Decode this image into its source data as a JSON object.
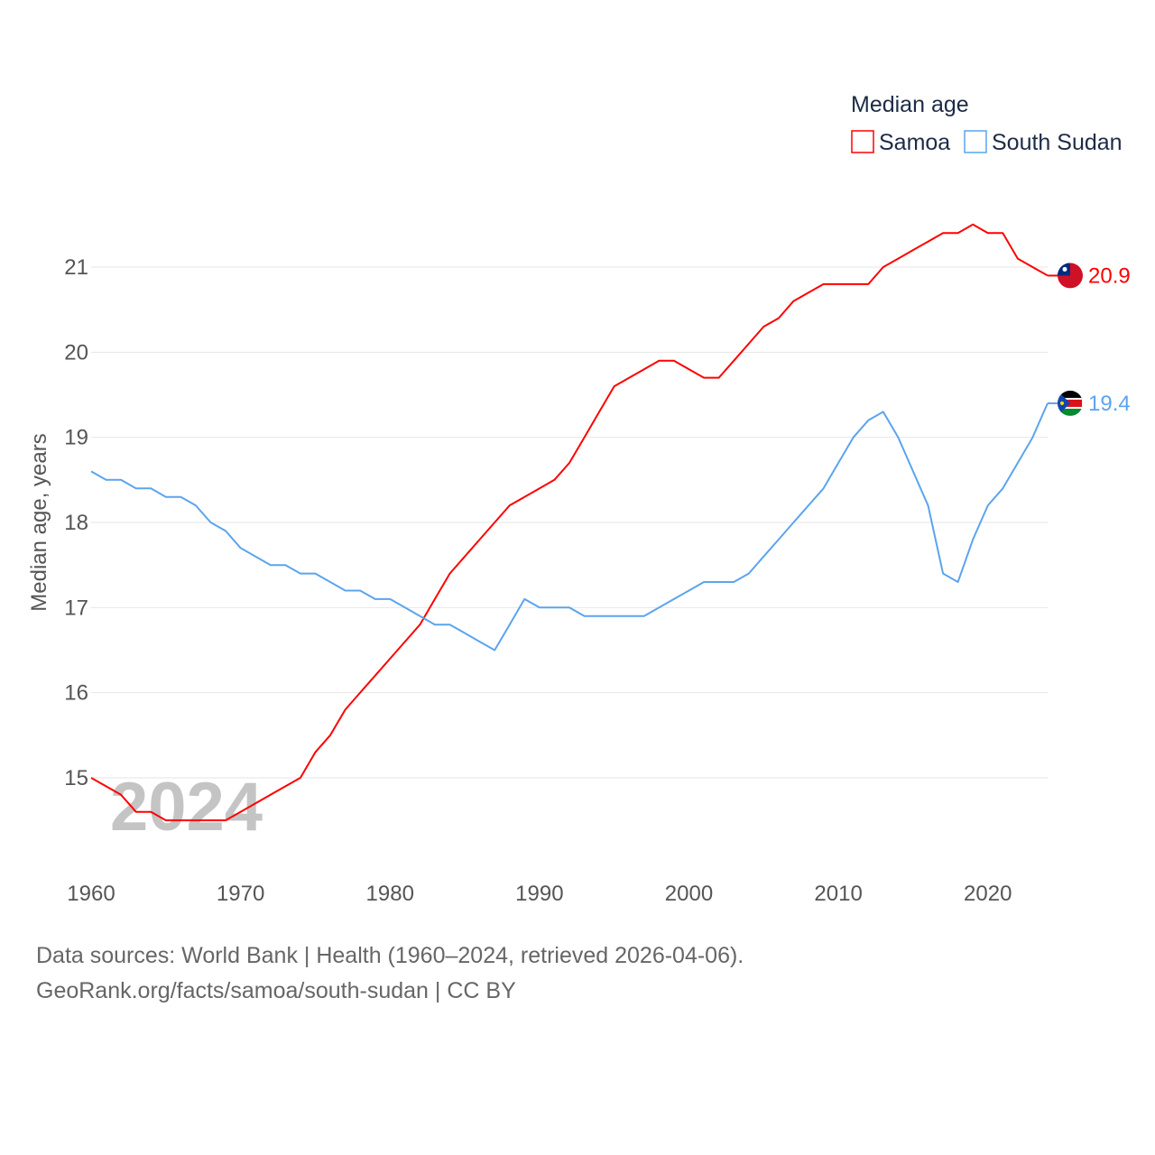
{
  "chart_data": {
    "type": "line",
    "title": "",
    "legend_title": "Median age",
    "legend_placement": "top-right",
    "xlabel": "",
    "ylabel": "Median age, years",
    "xlim": [
      1960,
      2024
    ],
    "ylim": [
      14,
      22
    ],
    "x_ticks": [
      "1960",
      "1970",
      "1980",
      "1990",
      "2000",
      "2010",
      "2020"
    ],
    "y_ticks": [
      "15",
      "16",
      "17",
      "18",
      "19",
      "20",
      "21"
    ],
    "year_watermark": "2024",
    "x": [
      1960,
      1961,
      1962,
      1963,
      1964,
      1965,
      1966,
      1967,
      1968,
      1969,
      1970,
      1971,
      1972,
      1973,
      1974,
      1975,
      1976,
      1977,
      1978,
      1979,
      1980,
      1981,
      1982,
      1983,
      1984,
      1985,
      1986,
      1987,
      1988,
      1989,
      1990,
      1991,
      1992,
      1993,
      1994,
      1995,
      1996,
      1997,
      1998,
      1999,
      2000,
      2001,
      2002,
      2003,
      2004,
      2005,
      2006,
      2007,
      2008,
      2009,
      2010,
      2011,
      2012,
      2013,
      2014,
      2015,
      2016,
      2017,
      2018,
      2019,
      2020,
      2021,
      2022,
      2023,
      2024
    ],
    "series": [
      {
        "name": "Samoa",
        "color": "#ff0000",
        "end_label": "20.9",
        "values": [
          15.0,
          14.9,
          14.8,
          14.6,
          14.6,
          14.5,
          14.5,
          14.5,
          14.5,
          14.5,
          14.6,
          14.7,
          14.8,
          14.9,
          15.0,
          15.3,
          15.5,
          15.8,
          16.0,
          16.2,
          16.4,
          16.6,
          16.8,
          17.1,
          17.4,
          17.6,
          17.8,
          18.0,
          18.2,
          18.3,
          18.4,
          18.5,
          18.7,
          19.0,
          19.3,
          19.6,
          19.7,
          19.8,
          19.9,
          19.9,
          19.8,
          19.7,
          19.7,
          19.9,
          20.1,
          20.3,
          20.4,
          20.6,
          20.7,
          20.8,
          20.8,
          20.8,
          20.8,
          21.0,
          21.1,
          21.2,
          21.3,
          21.4,
          21.4,
          21.5,
          21.4,
          21.4,
          21.1,
          21.0,
          20.9
        ]
      },
      {
        "name": "South Sudan",
        "color": "#5ba4ee",
        "end_label": "19.4",
        "values": [
          18.6,
          18.5,
          18.5,
          18.4,
          18.4,
          18.3,
          18.3,
          18.2,
          18.0,
          17.9,
          17.7,
          17.6,
          17.5,
          17.5,
          17.4,
          17.4,
          17.3,
          17.2,
          17.2,
          17.1,
          17.1,
          17.0,
          16.9,
          16.8,
          16.8,
          16.7,
          16.6,
          16.5,
          16.8,
          17.1,
          17.0,
          17.0,
          17.0,
          16.9,
          16.9,
          16.9,
          16.9,
          16.9,
          17.0,
          17.1,
          17.2,
          17.3,
          17.3,
          17.3,
          17.4,
          17.6,
          17.8,
          18.0,
          18.2,
          18.4,
          18.7,
          19.0,
          19.2,
          19.3,
          19.0,
          18.6,
          18.2,
          17.4,
          17.3,
          17.8,
          18.2,
          18.4,
          18.7,
          19.0,
          19.4
        ]
      }
    ]
  },
  "footer": {
    "sources": "Data sources: World Bank | Health (1960–2024, retrieved 2026-04-06).",
    "credit": "GeoRank.org/facts/samoa/south-sudan | CC BY"
  }
}
